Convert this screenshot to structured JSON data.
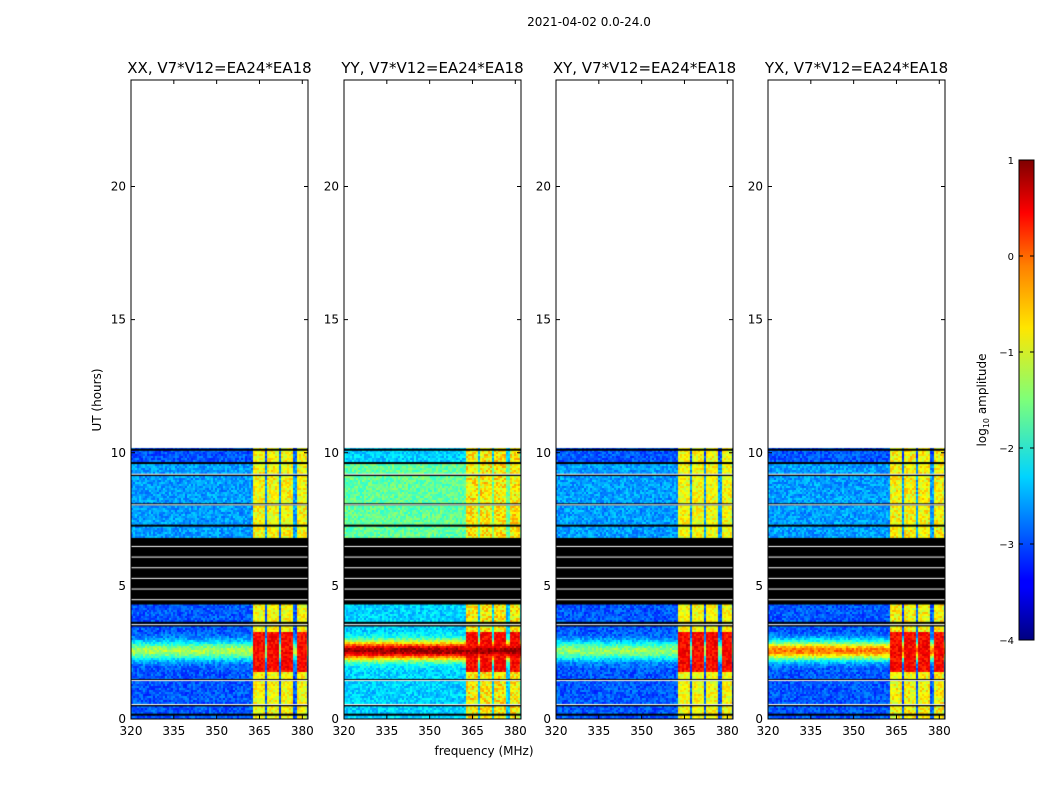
{
  "figure_title": "2021-04-02 0.0-24.0",
  "colors": {
    "background": "#ffffff",
    "frame": "#000000",
    "flag": "#000000",
    "colormap": "jet"
  },
  "chart_data": [
    {
      "type": "heatmap",
      "title": "XX, V7*V12=EA24*EA18",
      "xlabel": "",
      "ylabel": "UT (hours)",
      "xlim": [
        320,
        382
      ],
      "ylim": [
        0,
        24
      ],
      "xticks": [
        320,
        335,
        350,
        365,
        380
      ],
      "yticks": [
        0,
        5,
        10,
        15,
        20
      ],
      "rfi_strength": 0.8
    },
    {
      "type": "heatmap",
      "title": "YY, V7*V12=EA24*EA18",
      "xlabel": "frequency (MHz)",
      "ylabel": "",
      "xlim": [
        320,
        382
      ],
      "ylim": [
        0,
        24
      ],
      "xticks": [
        320,
        335,
        350,
        365,
        380
      ],
      "yticks": [
        0,
        5,
        10,
        15,
        20
      ],
      "rfi_strength": 1.0
    },
    {
      "type": "heatmap",
      "title": "XY, V7*V12=EA24*EA18",
      "xlabel": "",
      "ylabel": "",
      "xlim": [
        320,
        382
      ],
      "ylim": [
        0,
        24
      ],
      "xticks": [
        320,
        335,
        350,
        365,
        380
      ],
      "yticks": [
        0,
        5,
        10,
        15,
        20
      ],
      "rfi_strength": 0.75
    },
    {
      "type": "heatmap",
      "title": "YX, V7*V12=EA24*EA18",
      "xlabel": "",
      "ylabel": "",
      "xlim": [
        320,
        382
      ],
      "ylim": [
        0,
        24
      ],
      "xticks": [
        320,
        335,
        350,
        365,
        380
      ],
      "yticks": [
        0,
        5,
        10,
        15,
        20
      ],
      "rfi_strength": 0.85
    }
  ],
  "data_summary": {
    "no_data_above_hours": 10.2,
    "flagged_block_hours": [
      4.3,
      6.8
    ],
    "rfi_channels_mhz": [
      [
        362.5,
        366.5
      ],
      [
        367.5,
        371.5
      ],
      [
        372.5,
        376.5
      ],
      [
        377.5,
        381
      ]
    ],
    "strong_rfi_hours": [
      1.8,
      3.3
    ]
  },
  "colorbar": {
    "label_prefix": "log",
    "label_sub": "10",
    "label_suffix": " amplitude",
    "range": [
      -4,
      1
    ],
    "ticks": [
      1,
      0,
      -1,
      -2,
      -3,
      -4
    ],
    "tick_labels": [
      "1",
      "0",
      "−1",
      "−2",
      "−3",
      "−4"
    ]
  }
}
